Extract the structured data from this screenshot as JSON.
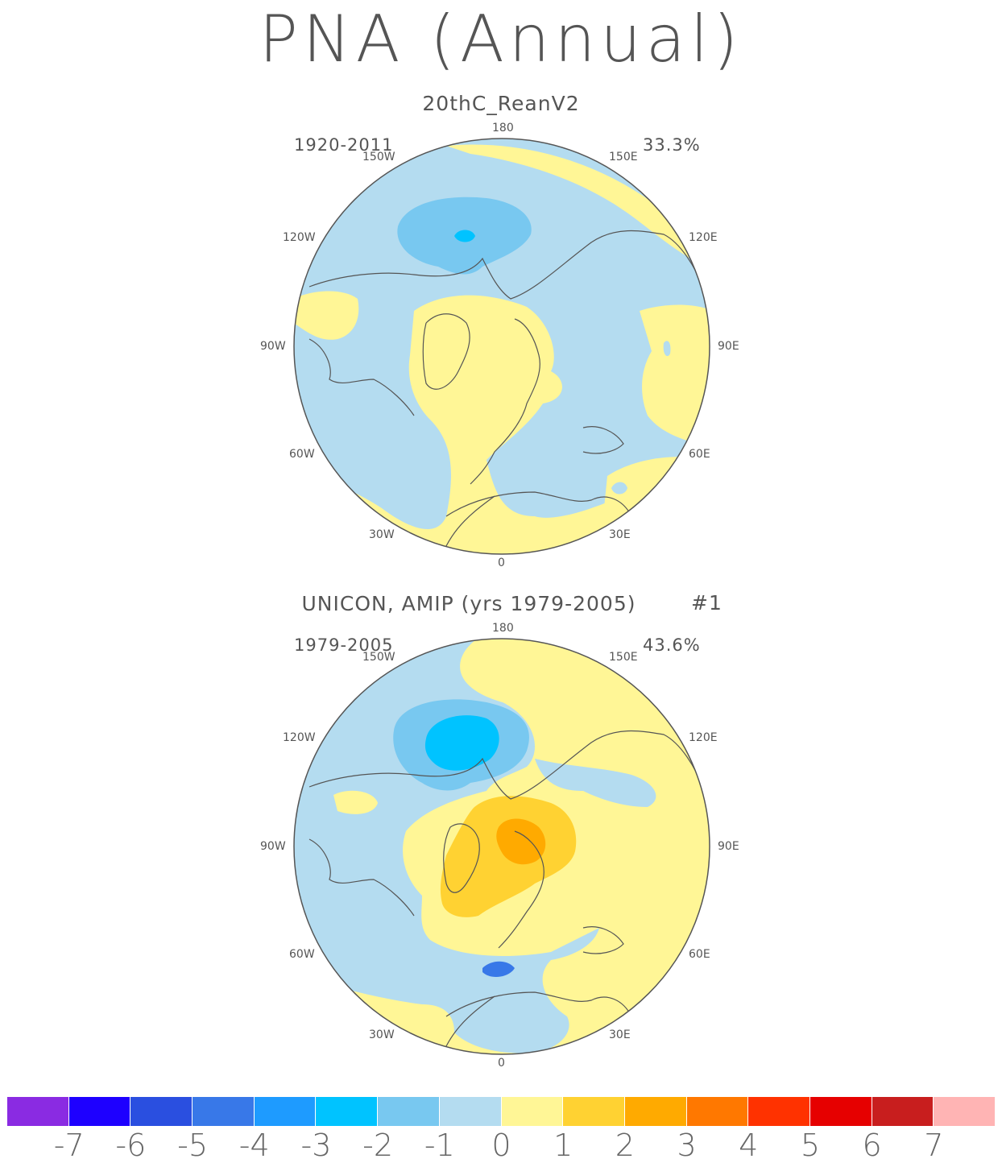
{
  "title": "PNA (Annual)",
  "panels": [
    {
      "subtitle": "20thC_ReanV2",
      "period": "1920-2011",
      "variance": "33.3%",
      "run": ""
    },
    {
      "subtitle": "UNICON, AMIP (yrs 1979-2005)",
      "period": "1979-2005",
      "variance": "43.6%",
      "run": "#1"
    }
  ],
  "longitude_labels": [
    "180",
    "150E",
    "120E",
    "90E",
    "60E",
    "30E",
    "0",
    "30W",
    "60W",
    "90W",
    "120W",
    "150W"
  ],
  "colorbar": {
    "colors": [
      "#8a2be2",
      "#1e00ff",
      "#2a4fe0",
      "#3878e8",
      "#1e9bff",
      "#00c3ff",
      "#78c8f0",
      "#b4dcf0",
      "#fff696",
      "#ffd232",
      "#ffaa00",
      "#ff7800",
      "#ff3200",
      "#e60000",
      "#c81e1e",
      "#ffb4b4"
    ],
    "labels": [
      "-7",
      "-6",
      "-5",
      "-4",
      "-3",
      "-2",
      "-1",
      "0",
      "1",
      "2",
      "3",
      "4",
      "5",
      "6",
      "7"
    ]
  }
}
